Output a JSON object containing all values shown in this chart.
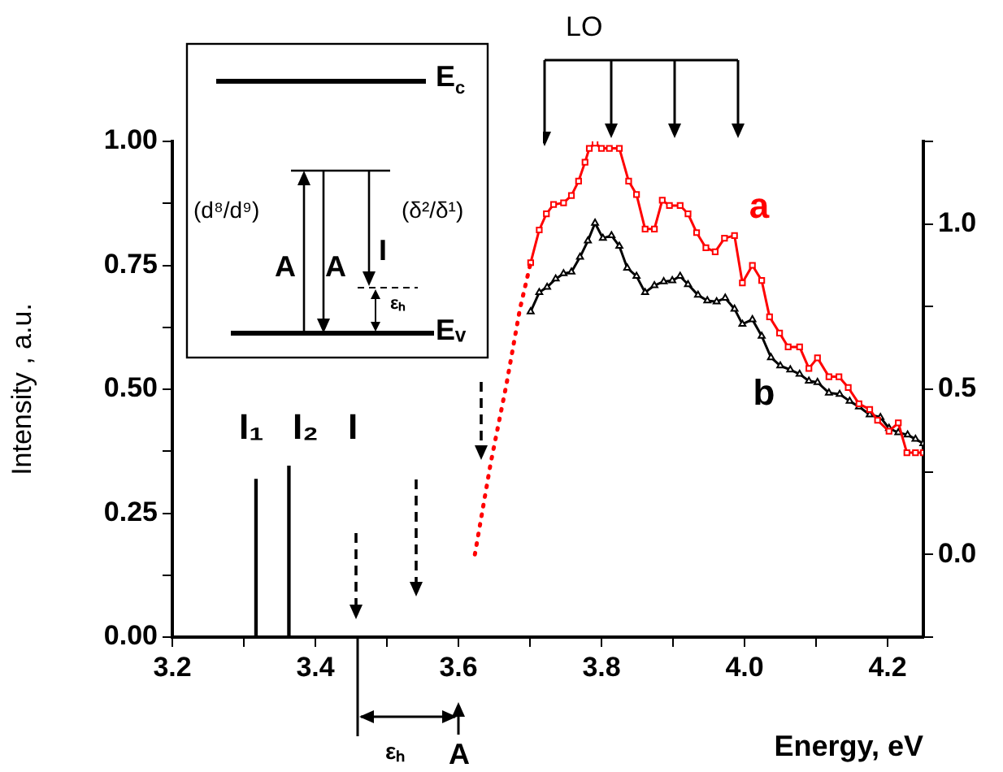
{
  "chart_data": {
    "type": "line",
    "xlabel": "Energy, eV",
    "ylabel": "Intensity , a.u.",
    "xlim": [
      3.2,
      4.25
    ],
    "xticks": [
      3.2,
      {
        "value": 3.3,
        "label": null
      },
      3.4,
      {
        "value": 3.5,
        "label": null
      },
      3.6,
      {
        "value": 3.7,
        "label": null
      },
      3.8,
      {
        "value": 3.9,
        "label": null
      },
      {
        "value": 4,
        "label": "4.0"
      },
      {
        "value": 4.1,
        "label": null
      },
      4.2
    ],
    "ylim": [
      0,
      1
    ],
    "yticks": [
      {
        "value": 0,
        "label": "0.00"
      },
      {
        "value": 0.125,
        "label": null
      },
      {
        "value": 0.25,
        "label": "0.25"
      },
      {
        "value": 0.375,
        "label": null
      },
      {
        "value": 0.5,
        "label": "0.50"
      },
      {
        "value": 0.625,
        "label": null
      },
      {
        "value": 0.75,
        "label": "0.75"
      },
      {
        "value": 0.875,
        "label": null
      },
      {
        "value": 1,
        "label": "1.00"
      }
    ],
    "y2lim": [
      -0.25,
      1.25
    ],
    "y2ticks": [
      {
        "value": -0.25,
        "label": null
      },
      {
        "value": 0,
        "label": "0.0"
      },
      {
        "value": 0.25,
        "label": null
      },
      {
        "value": 0.5,
        "label": "0.5"
      },
      {
        "value": 0.75,
        "label": null
      },
      {
        "value": 1,
        "label": "1.0"
      },
      {
        "value": 1.25,
        "label": null
      }
    ],
    "series": [
      {
        "type": "bar",
        "color": "#000000",
        "x": [
          3.317,
          3.363
        ],
        "values": [
          0.318,
          0.345
        ]
      },
      {
        "type": "line",
        "color": "#ff0000",
        "line_style": "dotted",
        "marker": "none",
        "axis": "y2",
        "x": [
          3.623,
          3.645,
          3.667,
          3.686,
          3.701
        ],
        "values": [
          0,
          0.275,
          0.513,
          0.743,
          0.883
        ]
      },
      {
        "name": "a",
        "color": "#ff0000",
        "marker": "square",
        "axis": "y2",
        "x": [
          3.701,
          3.713,
          3.723,
          3.733,
          3.747,
          3.758,
          3.768,
          3.777,
          3.783,
          3.791,
          3.8,
          3.811,
          3.825,
          3.838,
          3.849,
          3.861,
          3.874,
          3.885,
          3.895,
          3.91,
          3.921,
          3.933,
          3.946,
          3.959,
          3.972,
          3.986,
          3.997,
          4.011,
          4.024,
          4.035,
          4.049,
          4.061,
          4.077,
          4.09,
          4.102,
          4.118,
          4.132,
          4.145,
          4.16,
          4.175,
          4.186,
          4.202,
          4.215,
          4.227,
          4.239,
          4.25
        ],
        "values": [
          0.883,
          0.982,
          1.031,
          1.059,
          1.064,
          1.086,
          1.13,
          1.187,
          1.229,
          1.245,
          1.229,
          1.229,
          1.229,
          1.13,
          1.089,
          0.985,
          0.985,
          1.072,
          1.056,
          1.056,
          1.031,
          0.974,
          0.928,
          0.916,
          0.957,
          0.965,
          0.822,
          0.875,
          0.829,
          0.719,
          0.67,
          0.628,
          0.628,
          0.563,
          0.595,
          0.538,
          0.538,
          0.505,
          0.456,
          0.439,
          0.406,
          0.373,
          0.398,
          0.308,
          0.308,
          0.308
        ]
      },
      {
        "name": "b",
        "color": "#000000",
        "marker": "triangle",
        "axis": "y2",
        "x": [
          3.701,
          3.713,
          3.724,
          3.736,
          3.747,
          3.758,
          3.77,
          3.781,
          3.791,
          3.802,
          3.814,
          3.825,
          3.836,
          3.849,
          3.861,
          3.874,
          3.887,
          3.899,
          3.91,
          3.921,
          3.935,
          3.948,
          3.961,
          3.973,
          3.986,
          3.997,
          4.011,
          4.024,
          4.037,
          4.05,
          4.064,
          4.077,
          4.09,
          4.102,
          4.118,
          4.133,
          4.147,
          4.16,
          4.175,
          4.19,
          4.202,
          4.215,
          4.228,
          4.239,
          4.25
        ],
        "values": [
          0.735,
          0.793,
          0.809,
          0.834,
          0.85,
          0.855,
          0.9,
          0.949,
          1.003,
          0.957,
          0.965,
          0.933,
          0.867,
          0.842,
          0.793,
          0.814,
          0.826,
          0.829,
          0.842,
          0.817,
          0.785,
          0.768,
          0.765,
          0.776,
          0.743,
          0.697,
          0.711,
          0.661,
          0.596,
          0.571,
          0.559,
          0.546,
          0.525,
          0.521,
          0.489,
          0.485,
          0.464,
          0.447,
          0.423,
          0.415,
          0.382,
          0.369,
          0.362,
          0.349,
          0.336
        ]
      }
    ],
    "annotations": [
      "I₁",
      "I₂",
      "I",
      "LO",
      "E$_{c}$",
      "Eᵥ",
      "(d⁸/d⁹)",
      "(δ²/δ¹)",
      "A",
      "A",
      "I",
      "εₕ",
      "εₕ",
      "A"
    ]
  }
}
